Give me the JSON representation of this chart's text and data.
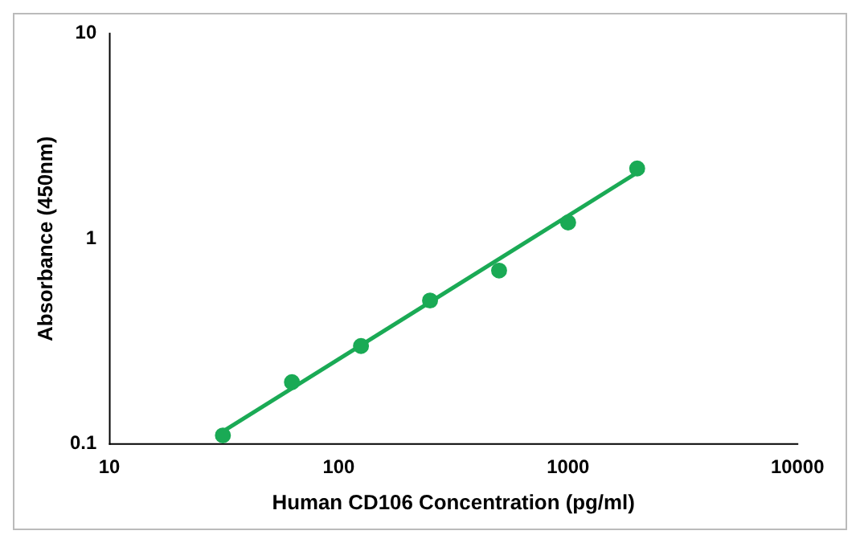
{
  "chart_data": {
    "type": "scatter",
    "xlabel": "Human CD106 Concentration (pg/ml)",
    "ylabel": "Absorbance (450nm)",
    "log": "xy",
    "xlim": [
      10,
      10000
    ],
    "xticks": [
      10,
      100,
      1000,
      10000
    ],
    "ylim": [
      0.1,
      10
    ],
    "yticks": [
      0.1,
      1,
      10
    ],
    "grid": false,
    "legend": false,
    "marker": "circle",
    "series": [
      {
        "color": "#1aaa55",
        "x": [
          31.25,
          62.5,
          125,
          250,
          500,
          1000,
          2000
        ],
        "values": [
          0.11,
          0.2,
          0.3,
          0.5,
          0.7,
          1.2,
          2.2
        ]
      },
      {
        "type": "line",
        "color": "#1aaa55",
        "marker": "none",
        "line_style": "solid",
        "x": [
          31.25,
          2000
        ],
        "values": [
          0.115,
          2.1
        ]
      }
    ]
  }
}
